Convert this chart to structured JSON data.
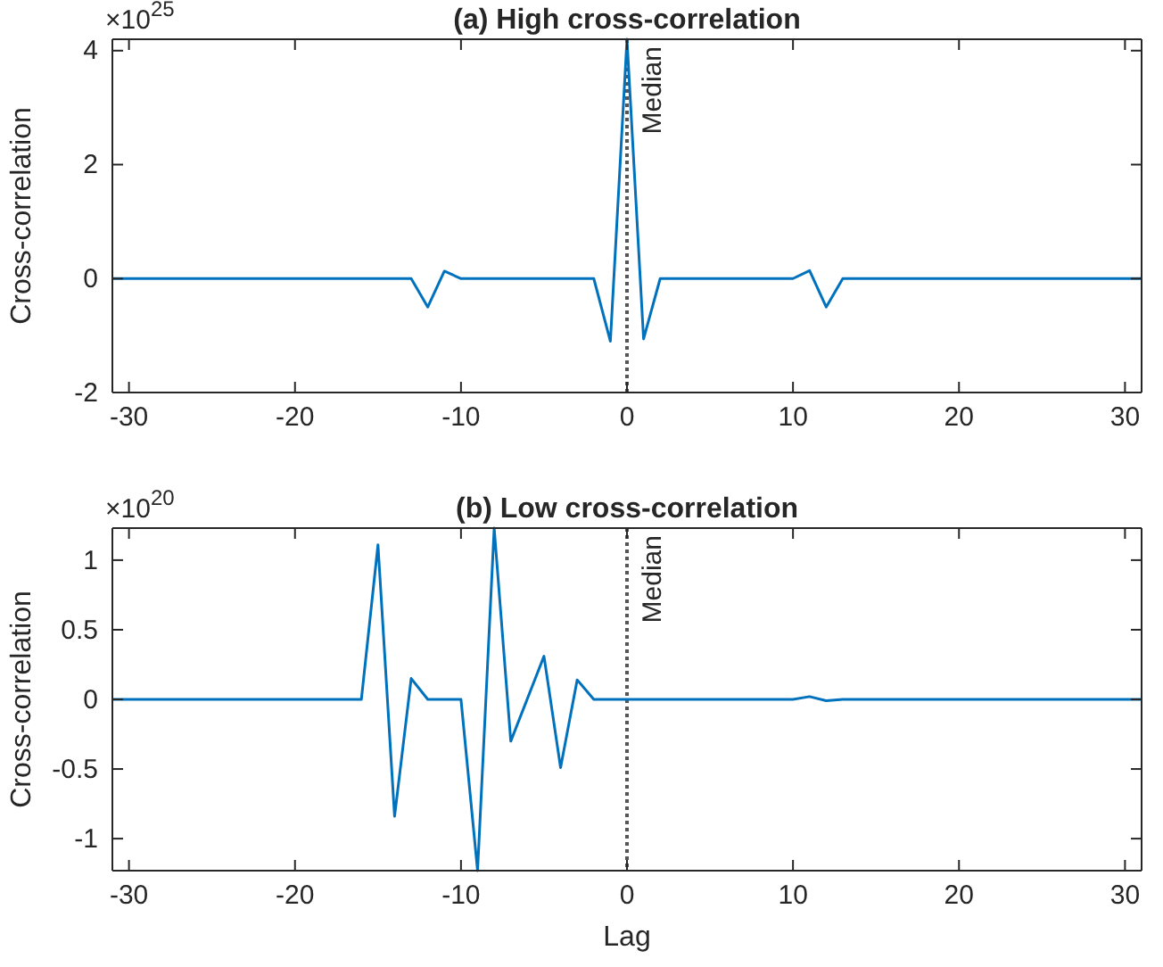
{
  "chart_data": [
    {
      "type": "line",
      "title": "(a) High cross-correlation",
      "ylabel": "Cross-correlation",
      "annotations": [
        "×10$^{25}$"
      ],
      "x": [
        -31,
        -13,
        -12,
        -11,
        -10,
        -2,
        -1,
        0,
        1,
        2,
        10,
        11,
        12,
        13,
        31
      ],
      "series": [
        {
          "color": "#0072bd",
          "values": [
            0,
            0,
            -0.5,
            0.13,
            0,
            0,
            -1.1,
            4.2,
            -1.06,
            0,
            0,
            0.14,
            -0.5,
            0,
            0
          ]
        }
      ],
      "xlim": [
        -31,
        31
      ],
      "xticks": [
        -30,
        -20,
        -10,
        0,
        10,
        20,
        30
      ],
      "ylim": [
        -2,
        4.2
      ],
      "yticks": [
        -2,
        0,
        2,
        4
      ],
      "ref_lines": [
        {
          "axis": "x",
          "value": 0,
          "label": "Median",
          "color": "#555555",
          "line_style": "dotted"
        }
      ],
      "grid": false
    },
    {
      "type": "line",
      "title": "(b) Low cross-correlation",
      "xlabel": "Lag",
      "ylabel": "Cross-correlation",
      "annotations": [
        "×10$^{20}$"
      ],
      "x": [
        -31,
        -16,
        -15,
        -14,
        -13,
        -12,
        -10,
        -9,
        -8,
        -7,
        -5,
        -4,
        -3,
        -2,
        10,
        11,
        12,
        13,
        31
      ],
      "series": [
        {
          "color": "#0072bd",
          "values": [
            0,
            0,
            1.11,
            -0.84,
            0.15,
            0,
            0,
            -1.23,
            1.23,
            -0.3,
            0.31,
            -0.49,
            0.14,
            0,
            0,
            0.02,
            -0.01,
            0,
            0
          ]
        }
      ],
      "xlim": [
        -31,
        31
      ],
      "xticks": [
        -30,
        -20,
        -10,
        0,
        10,
        20,
        30
      ],
      "ylim": [
        -1.23,
        1.23
      ],
      "yticks": [
        -1,
        -0.5,
        0,
        0.5,
        1
      ],
      "ref_lines": [
        {
          "axis": "x",
          "value": 0,
          "label": "Median",
          "color": "#555555",
          "line_style": "dotted"
        }
      ],
      "grid": false
    }
  ]
}
